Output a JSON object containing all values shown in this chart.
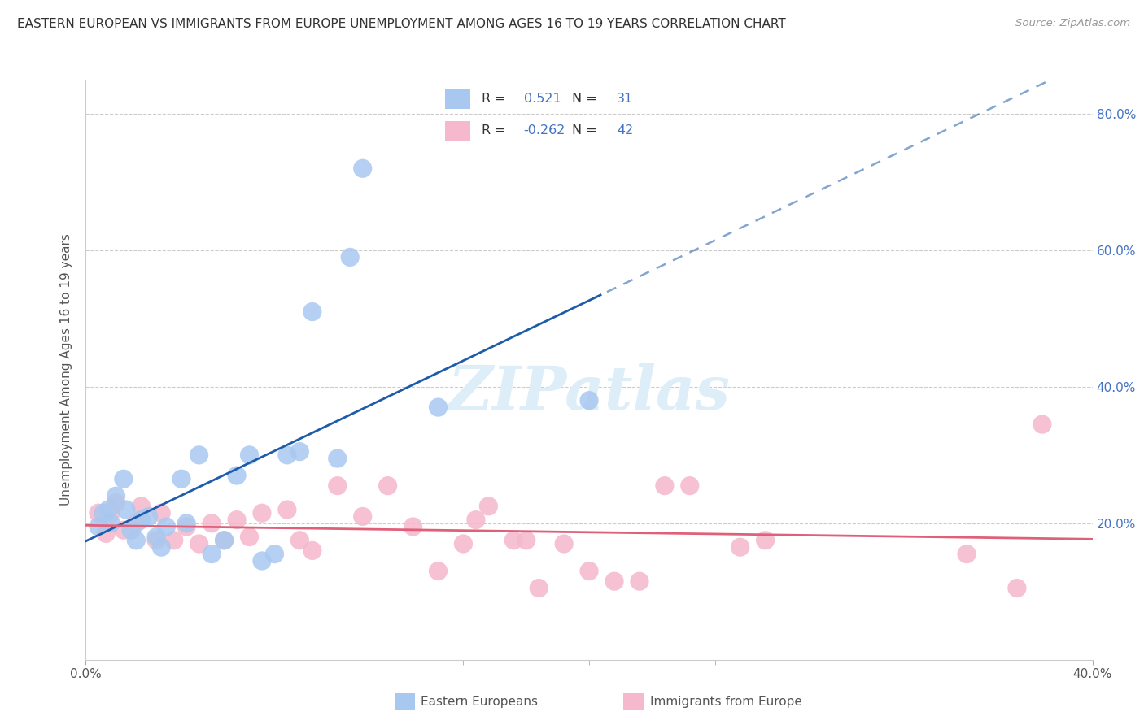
{
  "title": "EASTERN EUROPEAN VS IMMIGRANTS FROM EUROPE UNEMPLOYMENT AMONG AGES 16 TO 19 YEARS CORRELATION CHART",
  "source": "Source: ZipAtlas.com",
  "ylabel": "Unemployment Among Ages 16 to 19 years",
  "xlim": [
    0.0,
    0.4
  ],
  "ylim": [
    0.0,
    0.85
  ],
  "yticks_right": [
    0.2,
    0.4,
    0.6,
    0.8
  ],
  "ytick_labels_right": [
    "20.0%",
    "40.0%",
    "60.0%",
    "80.0%"
  ],
  "blue_R": 0.521,
  "blue_N": 31,
  "pink_R": -0.262,
  "pink_N": 42,
  "blue_scatter_x": [
    0.005,
    0.007,
    0.009,
    0.01,
    0.012,
    0.015,
    0.016,
    0.018,
    0.02,
    0.022,
    0.025,
    0.028,
    0.03,
    0.032,
    0.038,
    0.04,
    0.045,
    0.05,
    0.055,
    0.06,
    0.065,
    0.07,
    0.075,
    0.08,
    0.085,
    0.09,
    0.1,
    0.105,
    0.11,
    0.14,
    0.2
  ],
  "blue_scatter_y": [
    0.195,
    0.215,
    0.22,
    0.2,
    0.24,
    0.265,
    0.22,
    0.19,
    0.175,
    0.205,
    0.21,
    0.18,
    0.165,
    0.195,
    0.265,
    0.2,
    0.3,
    0.155,
    0.175,
    0.27,
    0.3,
    0.145,
    0.155,
    0.3,
    0.305,
    0.51,
    0.295,
    0.59,
    0.72,
    0.37,
    0.38
  ],
  "pink_scatter_x": [
    0.005,
    0.008,
    0.01,
    0.012,
    0.015,
    0.02,
    0.022,
    0.028,
    0.03,
    0.035,
    0.04,
    0.045,
    0.05,
    0.055,
    0.06,
    0.065,
    0.07,
    0.08,
    0.085,
    0.09,
    0.1,
    0.11,
    0.12,
    0.13,
    0.14,
    0.15,
    0.155,
    0.16,
    0.17,
    0.175,
    0.18,
    0.19,
    0.2,
    0.21,
    0.22,
    0.23,
    0.24,
    0.26,
    0.27,
    0.35,
    0.37,
    0.38
  ],
  "pink_scatter_y": [
    0.215,
    0.185,
    0.215,
    0.23,
    0.19,
    0.2,
    0.225,
    0.175,
    0.215,
    0.175,
    0.195,
    0.17,
    0.2,
    0.175,
    0.205,
    0.18,
    0.215,
    0.22,
    0.175,
    0.16,
    0.255,
    0.21,
    0.255,
    0.195,
    0.13,
    0.17,
    0.205,
    0.225,
    0.175,
    0.175,
    0.105,
    0.17,
    0.13,
    0.115,
    0.115,
    0.255,
    0.255,
    0.165,
    0.175,
    0.155,
    0.105,
    0.345
  ],
  "blue_color": "#a8c8f0",
  "pink_color": "#f5b8cc",
  "blue_line_color": "#1e5caa",
  "pink_line_color": "#e0607a",
  "background_color": "#ffffff",
  "grid_color": "#cccccc",
  "right_axis_color": "#4472c4",
  "watermark_text": "ZIPatlas",
  "watermark_color": "#ddeef8",
  "title_fontsize": 11,
  "ylabel_fontsize": 11,
  "tick_fontsize": 11
}
